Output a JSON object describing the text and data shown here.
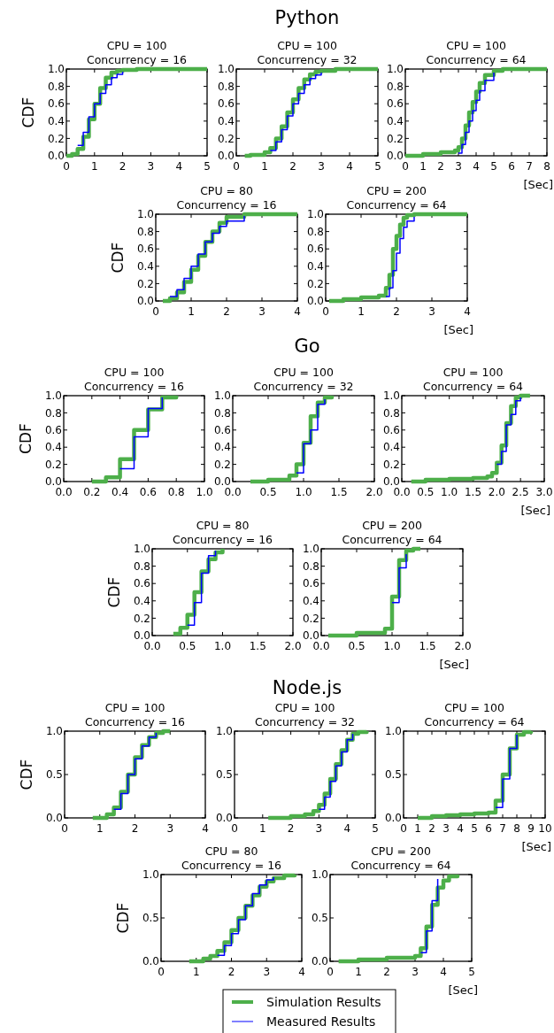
{
  "chart_data": [
    {
      "type": "step",
      "title": "CPU = 100",
      "subtitle": "Concurrency = 16",
      "ylabel": "CDF",
      "annotations": [
        "Python"
      ],
      "xlim": [
        0,
        5
      ],
      "xticks": [
        0,
        1,
        2,
        3,
        4,
        5
      ],
      "ylim": [
        0,
        1
      ],
      "yticks": [
        {
          "value": 0,
          "label": "0.0"
        },
        {
          "value": 0.2,
          "label": "0.2"
        },
        {
          "value": 0.4,
          "label": "0.4"
        },
        {
          "value": 0.6,
          "label": "0.6"
        },
        {
          "value": 0.8,
          "label": "0.8"
        },
        {
          "value": 1,
          "label": "1.0"
        }
      ],
      "series": [
        {
          "color": "#4daf4a",
          "x": [
            0,
            0.2,
            0.4,
            0.6,
            0.8,
            1.0,
            1.2,
            1.4,
            1.6,
            1.8,
            2.0,
            2.5,
            3,
            4,
            5
          ],
          "values": [
            0,
            0.02,
            0.08,
            0.22,
            0.42,
            0.6,
            0.78,
            0.9,
            0.96,
            0.98,
            0.99,
            1,
            1,
            1,
            1
          ]
        },
        {
          "color": "#0000ff",
          "x": [
            0.4,
            0.6,
            0.8,
            1.0,
            1.2,
            1.4,
            1.6,
            1.8,
            2.0
          ],
          "values": [
            0.12,
            0.27,
            0.45,
            0.6,
            0.72,
            0.82,
            0.9,
            0.94,
            0.97
          ]
        }
      ]
    },
    {
      "type": "step",
      "title": "CPU = 100",
      "subtitle": "Concurrency = 32",
      "xlim": [
        0,
        5
      ],
      "xticks": [
        0,
        1,
        2,
        3,
        4,
        5
      ],
      "ylim": [
        0,
        1
      ],
      "yticks": [
        {
          "value": 0,
          "label": "0.0"
        },
        {
          "value": 0.2,
          "label": "0.2"
        },
        {
          "value": 0.4,
          "label": "0.4"
        },
        {
          "value": 0.6,
          "label": "0.6"
        },
        {
          "value": 0.8,
          "label": "0.8"
        },
        {
          "value": 1,
          "label": "1.0"
        }
      ],
      "series": [
        {
          "color": "#4daf4a",
          "x": [
            0.3,
            0.5,
            1,
            1.2,
            1.4,
            1.6,
            1.8,
            2.0,
            2.2,
            2.4,
            2.6,
            2.8,
            3,
            3.5,
            4,
            5
          ],
          "values": [
            0,
            0.01,
            0.04,
            0.09,
            0.2,
            0.34,
            0.5,
            0.65,
            0.78,
            0.88,
            0.94,
            0.97,
            0.98,
            1,
            1,
            1
          ]
        },
        {
          "color": "#0000ff",
          "x": [
            1.2,
            1.4,
            1.6,
            1.8,
            2.0,
            2.2,
            2.4,
            2.6,
            2.8,
            3
          ],
          "values": [
            0.06,
            0.16,
            0.3,
            0.46,
            0.6,
            0.72,
            0.82,
            0.89,
            0.93,
            0.96
          ]
        }
      ]
    },
    {
      "type": "step",
      "title": "CPU = 100",
      "subtitle": "Concurrency = 64",
      "xlabel": "[Sec]",
      "xlim": [
        0,
        8
      ],
      "xticks": [
        0,
        1,
        2,
        3,
        4,
        5,
        6,
        7,
        8
      ],
      "ylim": [
        0,
        1
      ],
      "yticks": [
        {
          "value": 0,
          "label": "0.0"
        },
        {
          "value": 0.2,
          "label": "0.2"
        },
        {
          "value": 0.4,
          "label": "0.4"
        },
        {
          "value": 0.6,
          "label": "0.6"
        },
        {
          "value": 0.8,
          "label": "0.8"
        },
        {
          "value": 1,
          "label": "1.0"
        }
      ],
      "series": [
        {
          "color": "#4daf4a",
          "x": [
            0,
            1,
            2,
            2.8,
            3,
            3.2,
            3.4,
            3.6,
            3.8,
            4,
            4.2,
            4.5,
            5,
            5.5,
            6,
            8
          ],
          "values": [
            0,
            0.02,
            0.04,
            0.06,
            0.1,
            0.2,
            0.35,
            0.5,
            0.62,
            0.74,
            0.84,
            0.93,
            0.98,
            1,
            1,
            1
          ]
        },
        {
          "color": "#0000ff",
          "x": [
            3,
            3.2,
            3.4,
            3.6,
            3.8,
            4,
            4.2,
            4.5,
            5
          ],
          "values": [
            0.03,
            0.13,
            0.27,
            0.4,
            0.52,
            0.64,
            0.75,
            0.87,
            0.96
          ]
        }
      ]
    },
    {
      "type": "step",
      "title": "CPU = 80",
      "subtitle": "Concurrency = 16",
      "ylabel": "CDF",
      "xlim": [
        0,
        4
      ],
      "xticks": [
        0,
        1,
        2,
        3,
        4
      ],
      "ylim": [
        0,
        1
      ],
      "yticks": [
        {
          "value": 0,
          "label": "0.0"
        },
        {
          "value": 0.2,
          "label": "0.2"
        },
        {
          "value": 0.4,
          "label": "0.4"
        },
        {
          "value": 0.6,
          "label": "0.6"
        },
        {
          "value": 0.8,
          "label": "0.8"
        },
        {
          "value": 1,
          "label": "1.0"
        }
      ],
      "series": [
        {
          "color": "#4daf4a",
          "x": [
            0.2,
            0.4,
            0.6,
            0.8,
            1,
            1.2,
            1.4,
            1.6,
            1.8,
            2,
            2.5,
            3,
            4
          ],
          "values": [
            0,
            0.03,
            0.1,
            0.22,
            0.36,
            0.52,
            0.68,
            0.8,
            0.9,
            0.97,
            1,
            1,
            1
          ]
        },
        {
          "color": "#0000ff",
          "x": [
            0.4,
            0.6,
            0.8,
            1,
            1.2,
            1.4,
            1.6,
            1.8,
            2,
            2.5
          ],
          "values": [
            0.05,
            0.13,
            0.26,
            0.4,
            0.54,
            0.68,
            0.78,
            0.86,
            0.92,
            0.98
          ]
        }
      ]
    },
    {
      "type": "step",
      "title": "CPU = 200",
      "subtitle": "Concurrency = 64",
      "xlabel": "[Sec]",
      "xlim": [
        0,
        4
      ],
      "xticks": [
        0,
        1,
        2,
        3,
        4
      ],
      "ylim": [
        0,
        1
      ],
      "yticks": [
        {
          "value": 0,
          "label": "0.0"
        },
        {
          "value": 0.2,
          "label": "0.2"
        },
        {
          "value": 0.4,
          "label": "0.4"
        },
        {
          "value": 0.6,
          "label": "0.6"
        },
        {
          "value": 0.8,
          "label": "0.8"
        },
        {
          "value": 1,
          "label": "1.0"
        }
      ],
      "series": [
        {
          "color": "#4daf4a",
          "x": [
            0.1,
            0.5,
            1,
            1.5,
            1.7,
            1.8,
            1.9,
            2,
            2.1,
            2.2,
            2.3,
            2.5,
            2.7,
            4
          ],
          "values": [
            0,
            0.02,
            0.04,
            0.06,
            0.15,
            0.3,
            0.6,
            0.75,
            0.88,
            0.96,
            0.99,
            1,
            1,
            1
          ]
        },
        {
          "color": "#0000ff",
          "x": [
            1.7,
            1.8,
            1.9,
            2,
            2.1,
            2.2,
            2.3,
            2.5
          ],
          "values": [
            0.05,
            0.15,
            0.35,
            0.55,
            0.72,
            0.85,
            0.92,
            0.97
          ]
        }
      ]
    },
    {
      "type": "step",
      "title": "CPU = 100",
      "subtitle": "Concurrency = 16",
      "ylabel": "CDF",
      "annotations": [
        "Go"
      ],
      "xlim": [
        0,
        1
      ],
      "xticks": [
        {
          "value": 0,
          "label": "0.0"
        },
        {
          "value": 0.2,
          "label": "0.2"
        },
        {
          "value": 0.4,
          "label": "0.4"
        },
        {
          "value": 0.6,
          "label": "0.6"
        },
        {
          "value": 0.8,
          "label": "0.8"
        },
        {
          "value": 1,
          "label": "1.0"
        }
      ],
      "ylim": [
        0,
        1
      ],
      "yticks": [
        {
          "value": 0,
          "label": "0.0"
        },
        {
          "value": 0.2,
          "label": "0.2"
        },
        {
          "value": 0.4,
          "label": "0.4"
        },
        {
          "value": 0.6,
          "label": "0.6"
        },
        {
          "value": 0.8,
          "label": "0.8"
        },
        {
          "value": 1,
          "label": "1.0"
        }
      ],
      "series": [
        {
          "color": "#4daf4a",
          "x": [
            0.2,
            0.3,
            0.4,
            0.5,
            0.6,
            0.7,
            0.8
          ],
          "values": [
            0,
            0.05,
            0.26,
            0.6,
            0.84,
            0.98,
            1
          ]
        },
        {
          "color": "#0000ff",
          "x": [
            0.4,
            0.5,
            0.6,
            0.7
          ],
          "values": [
            0.15,
            0.52,
            0.85,
            0.98
          ]
        }
      ]
    },
    {
      "type": "step",
      "title": "CPU = 100",
      "subtitle": "Concurrency = 32",
      "xlim": [
        0,
        2
      ],
      "xticks": [
        {
          "value": 0,
          "label": "0.0"
        },
        {
          "value": 0.5,
          "label": "0.5"
        },
        {
          "value": 1,
          "label": "1.0"
        },
        {
          "value": 1.5,
          "label": "1.5"
        },
        {
          "value": 2,
          "label": "2.0"
        }
      ],
      "ylim": [
        0,
        1
      ],
      "yticks": [
        {
          "value": 0,
          "label": "0.0"
        },
        {
          "value": 0.2,
          "label": "0.2"
        },
        {
          "value": 0.4,
          "label": "0.4"
        },
        {
          "value": 0.6,
          "label": "0.6"
        },
        {
          "value": 0.8,
          "label": "0.8"
        },
        {
          "value": 1,
          "label": "1.0"
        }
      ],
      "series": [
        {
          "color": "#4daf4a",
          "x": [
            0.25,
            0.5,
            0.8,
            0.9,
            1.0,
            1.1,
            1.2,
            1.3,
            1.4
          ],
          "values": [
            0,
            0.02,
            0.07,
            0.2,
            0.45,
            0.76,
            0.92,
            0.98,
            1
          ]
        },
        {
          "color": "#0000ff",
          "x": [
            0.9,
            1.0,
            1.1,
            1.2,
            1.3
          ],
          "values": [
            0.1,
            0.44,
            0.6,
            0.9,
            0.96
          ]
        }
      ]
    },
    {
      "type": "step",
      "title": "CPU = 100",
      "subtitle": "Concurrency = 64",
      "xlabel": "[Sec]",
      "xlim": [
        0,
        3
      ],
      "xticks": [
        {
          "value": 0,
          "label": "0.0"
        },
        {
          "value": 0.5,
          "label": "0.5"
        },
        {
          "value": 1,
          "label": "1.0"
        },
        {
          "value": 1.5,
          "label": "1.5"
        },
        {
          "value": 2,
          "label": "2.0"
        },
        {
          "value": 2.5,
          "label": "2.5"
        },
        {
          "value": 3,
          "label": "3.0"
        }
      ],
      "ylim": [
        0,
        1
      ],
      "yticks": [
        {
          "value": 0,
          "label": "0.0"
        },
        {
          "value": 0.2,
          "label": "0.2"
        },
        {
          "value": 0.4,
          "label": "0.4"
        },
        {
          "value": 0.6,
          "label": "0.6"
        },
        {
          "value": 0.8,
          "label": "0.8"
        },
        {
          "value": 1,
          "label": "1.0"
        }
      ],
      "series": [
        {
          "color": "#4daf4a",
          "x": [
            0.2,
            0.5,
            1,
            1.5,
            1.8,
            1.9,
            2.0,
            2.1,
            2.2,
            2.3,
            2.4,
            2.5,
            2.7
          ],
          "values": [
            0,
            0.02,
            0.03,
            0.04,
            0.06,
            0.1,
            0.22,
            0.42,
            0.68,
            0.88,
            0.98,
            1,
            1
          ]
        },
        {
          "color": "#0000ff",
          "x": [
            2.0,
            2.1,
            2.2,
            2.3,
            2.4,
            2.5
          ],
          "values": [
            0.2,
            0.35,
            0.66,
            0.78,
            0.94,
            0.98
          ]
        }
      ]
    },
    {
      "type": "step",
      "title": "CPU = 80",
      "subtitle": "Concurrency = 16",
      "ylabel": "CDF",
      "xlim": [
        0,
        2
      ],
      "xticks": [
        {
          "value": 0,
          "label": "0.0"
        },
        {
          "value": 0.5,
          "label": "0.5"
        },
        {
          "value": 1,
          "label": "1.0"
        },
        {
          "value": 1.5,
          "label": "1.5"
        },
        {
          "value": 2,
          "label": "2.0"
        }
      ],
      "ylim": [
        0,
        1
      ],
      "yticks": [
        {
          "value": 0,
          "label": "0.0"
        },
        {
          "value": 0.2,
          "label": "0.2"
        },
        {
          "value": 0.4,
          "label": "0.4"
        },
        {
          "value": 0.6,
          "label": "0.6"
        },
        {
          "value": 0.8,
          "label": "0.8"
        },
        {
          "value": 1,
          "label": "1.0"
        }
      ],
      "series": [
        {
          "color": "#4daf4a",
          "x": [
            0.3,
            0.4,
            0.5,
            0.6,
            0.7,
            0.8,
            0.9,
            1.0
          ],
          "values": [
            0.02,
            0.09,
            0.24,
            0.5,
            0.74,
            0.88,
            0.96,
            1
          ]
        },
        {
          "color": "#0000ff",
          "x": [
            0.5,
            0.6,
            0.7,
            0.8,
            0.9
          ],
          "values": [
            0.12,
            0.38,
            0.72,
            0.92,
            0.98
          ]
        }
      ]
    },
    {
      "type": "step",
      "title": "CPU = 200",
      "subtitle": "Concurrency = 64",
      "xlabel": "[Sec]",
      "xlim": [
        0,
        2
      ],
      "xticks": [
        {
          "value": 0,
          "label": "0.0"
        },
        {
          "value": 0.5,
          "label": "0.5"
        },
        {
          "value": 1,
          "label": "1.0"
        },
        {
          "value": 1.5,
          "label": "1.5"
        },
        {
          "value": 2,
          "label": "2.0"
        }
      ],
      "ylim": [
        0,
        1
      ],
      "yticks": [
        {
          "value": 0,
          "label": "0.0"
        },
        {
          "value": 0.2,
          "label": "0.2"
        },
        {
          "value": 0.4,
          "label": "0.4"
        },
        {
          "value": 0.6,
          "label": "0.6"
        },
        {
          "value": 0.8,
          "label": "0.8"
        },
        {
          "value": 1,
          "label": "1.0"
        }
      ],
      "series": [
        {
          "color": "#4daf4a",
          "x": [
            0.1,
            0.5,
            0.9,
            1.0,
            1.1,
            1.2,
            1.3,
            1.4
          ],
          "values": [
            0,
            0.03,
            0.08,
            0.45,
            0.87,
            0.98,
            1,
            1
          ]
        },
        {
          "color": "#0000ff",
          "x": [
            1.0,
            1.1,
            1.2
          ],
          "values": [
            0.38,
            0.78,
            0.94
          ]
        }
      ]
    },
    {
      "type": "step",
      "title": "CPU = 100",
      "subtitle": "Concurrency = 16",
      "ylabel": "CDF",
      "annotations": [
        "Node.js"
      ],
      "xlim": [
        0,
        4
      ],
      "xticks": [
        0,
        1,
        2,
        3,
        4
      ],
      "ylim": [
        0,
        1
      ],
      "yticks": [
        {
          "value": 0,
          "label": "0.0"
        },
        {
          "value": 0.5,
          "label": "0.5"
        },
        {
          "value": 1,
          "label": "1.0"
        }
      ],
      "series": [
        {
          "color": "#4daf4a",
          "x": [
            0.8,
            1.2,
            1.4,
            1.6,
            1.8,
            2.0,
            2.2,
            2.4,
            2.6,
            2.8,
            3.0
          ],
          "values": [
            0,
            0.04,
            0.12,
            0.3,
            0.5,
            0.7,
            0.84,
            0.93,
            0.98,
            1,
            1
          ]
        },
        {
          "color": "#0000ff",
          "x": [
            1.4,
            1.6,
            1.8,
            2.0,
            2.2,
            2.4,
            2.6
          ],
          "values": [
            0.1,
            0.28,
            0.5,
            0.68,
            0.83,
            0.93,
            0.98
          ]
        }
      ]
    },
    {
      "type": "step",
      "title": "CPU = 100",
      "subtitle": "Concurrency = 32",
      "xlim": [
        0,
        5
      ],
      "xticks": [
        0,
        1,
        2,
        3,
        4,
        5
      ],
      "ylim": [
        0,
        1
      ],
      "yticks": [
        {
          "value": 0,
          "label": "0.0"
        },
        {
          "value": 0.5,
          "label": "0.5"
        },
        {
          "value": 1,
          "label": "1.0"
        }
      ],
      "series": [
        {
          "color": "#4daf4a",
          "x": [
            1.2,
            2,
            2.5,
            2.8,
            3.0,
            3.2,
            3.4,
            3.6,
            3.8,
            4.0,
            4.2,
            4.4,
            4.7
          ],
          "values": [
            0,
            0.02,
            0.04,
            0.08,
            0.15,
            0.28,
            0.45,
            0.62,
            0.78,
            0.9,
            0.97,
            0.99,
            1
          ]
        },
        {
          "color": "#0000ff",
          "x": [
            3.0,
            3.2,
            3.4,
            3.6,
            3.8,
            4.0,
            4.2
          ],
          "values": [
            0.1,
            0.24,
            0.42,
            0.6,
            0.76,
            0.9,
            0.97
          ]
        }
      ]
    },
    {
      "type": "step",
      "title": "CPU = 100",
      "subtitle": "Concurrency = 64",
      "xlabel": "[Sec]",
      "xlim": [
        0,
        10
      ],
      "xticks": [
        0,
        1,
        2,
        3,
        4,
        5,
        6,
        7,
        8,
        9,
        10
      ],
      "ylim": [
        0,
        1
      ],
      "yticks": [
        {
          "value": 0,
          "label": "0.0"
        },
        {
          "value": 0.5,
          "label": "0.5"
        },
        {
          "value": 1,
          "label": "1.0"
        }
      ],
      "series": [
        {
          "color": "#4daf4a",
          "x": [
            1,
            2,
            3,
            4,
            5,
            6,
            6.5,
            7,
            7.5,
            8,
            8.5,
            9
          ],
          "values": [
            0,
            0.02,
            0.03,
            0.04,
            0.05,
            0.06,
            0.2,
            0.5,
            0.8,
            0.96,
            0.99,
            1
          ]
        },
        {
          "color": "#0000ff",
          "x": [
            6.5,
            7,
            7.5,
            8
          ],
          "values": [
            0.12,
            0.45,
            0.8,
            0.96
          ]
        }
      ]
    },
    {
      "type": "step",
      "title": "CPU = 80",
      "subtitle": "Concurrency = 16",
      "ylabel": "CDF",
      "xlim": [
        0,
        4
      ],
      "xticks": [
        0,
        1,
        2,
        3,
        4
      ],
      "ylim": [
        0,
        1
      ],
      "yticks": [
        {
          "value": 0,
          "label": "0.0"
        },
        {
          "value": 0.5,
          "label": "0.5"
        },
        {
          "value": 1,
          "label": "1.0"
        }
      ],
      "series": [
        {
          "color": "#4daf4a",
          "x": [
            0.8,
            1.2,
            1.4,
            1.6,
            1.8,
            2.0,
            2.2,
            2.4,
            2.6,
            2.8,
            3.0,
            3.2,
            3.5,
            3.8
          ],
          "values": [
            0,
            0.03,
            0.06,
            0.12,
            0.22,
            0.36,
            0.5,
            0.64,
            0.76,
            0.86,
            0.92,
            0.96,
            0.99,
            1
          ]
        },
        {
          "color": "#0000ff",
          "x": [
            1.6,
            1.8,
            2.0,
            2.2,
            2.4,
            2.6,
            2.8,
            3.0,
            3.2
          ],
          "values": [
            0.07,
            0.18,
            0.32,
            0.48,
            0.64,
            0.78,
            0.88,
            0.94,
            0.97
          ]
        }
      ]
    },
    {
      "type": "step",
      "title": "CPU = 200",
      "subtitle": "Concurrency = 64",
      "xlabel": "[Sec]",
      "legend": "bottom",
      "xlim": [
        0,
        5
      ],
      "xticks": [
        0,
        1,
        2,
        3,
        4,
        5
      ],
      "ylim": [
        0,
        1
      ],
      "yticks": [
        {
          "value": 0,
          "label": "0.0"
        },
        {
          "value": 0.5,
          "label": "0.5"
        },
        {
          "value": 1,
          "label": "1.0"
        }
      ],
      "series": [
        {
          "name": "Simulation Results",
          "color": "#4daf4a",
          "x": [
            0.3,
            1,
            2,
            3,
            3.2,
            3.4,
            3.6,
            3.8,
            4.0,
            4.2,
            4.5
          ],
          "values": [
            0,
            0.02,
            0.04,
            0.06,
            0.15,
            0.4,
            0.65,
            0.85,
            0.93,
            0.98,
            1
          ]
        },
        {
          "name": "Measured Results",
          "color": "#0000ff",
          "x": [
            3.2,
            3.4,
            3.6,
            3.8
          ],
          "values": [
            0.1,
            0.35,
            0.7,
            0.95
          ]
        }
      ]
    }
  ]
}
